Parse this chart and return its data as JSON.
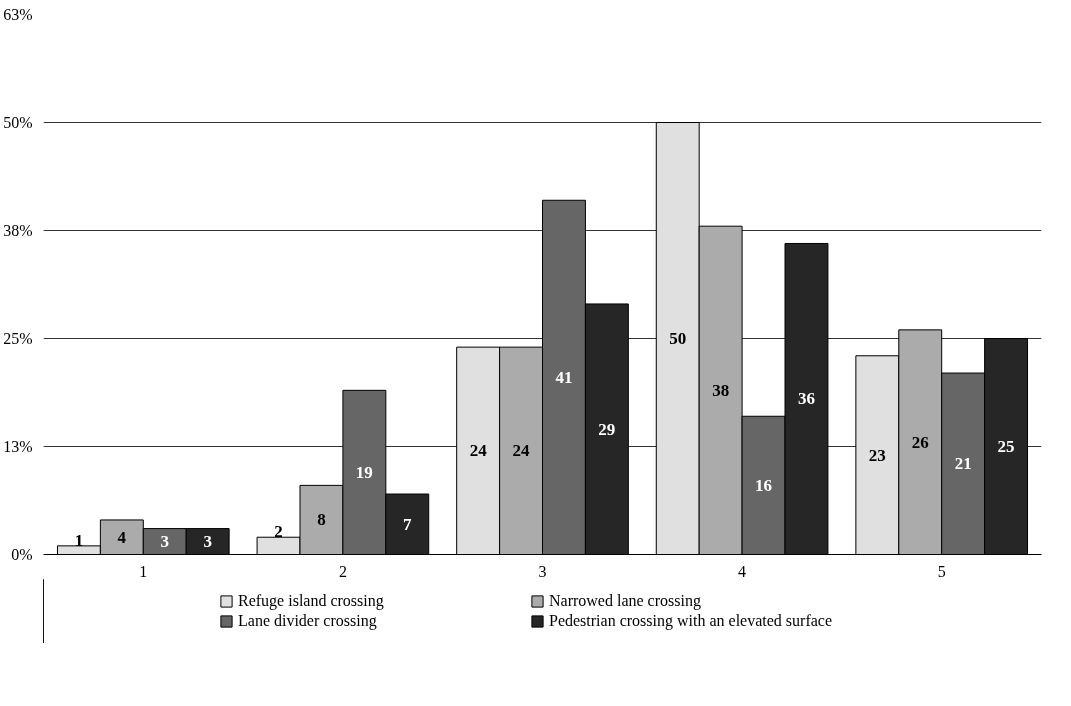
{
  "chart_data": {
    "type": "bar",
    "categories": [
      "1",
      "2",
      "3",
      "4",
      "5"
    ],
    "series": [
      {
        "name": "Refuge island crossing",
        "color": "#e0e0e0",
        "values": [
          1,
          2,
          24,
          50,
          23
        ]
      },
      {
        "name": "Narrowed lane crossing",
        "color": "#ababab",
        "values": [
          4,
          8,
          24,
          38,
          26
        ]
      },
      {
        "name": "Lane divider crossing",
        "color": "#666666",
        "values": [
          3,
          19,
          41,
          16,
          21
        ]
      },
      {
        "name": "Pedestrian crossing with an elevated surface",
        "color": "#262626",
        "values": [
          3,
          7,
          29,
          36,
          25
        ]
      }
    ],
    "ylim": [
      0,
      62.5
    ],
    "yticks": [
      {
        "value": 0,
        "label": "0%"
      },
      {
        "value": 12.5,
        "label": "13%"
      },
      {
        "value": 25,
        "label": "25%"
      },
      {
        "value": 37.5,
        "label": "38%"
      },
      {
        "value": 50,
        "label": "50%"
      },
      {
        "value": 62.5,
        "label": "63%"
      }
    ],
    "grid": "y",
    "legend": "bottom",
    "data_labels": true
  }
}
